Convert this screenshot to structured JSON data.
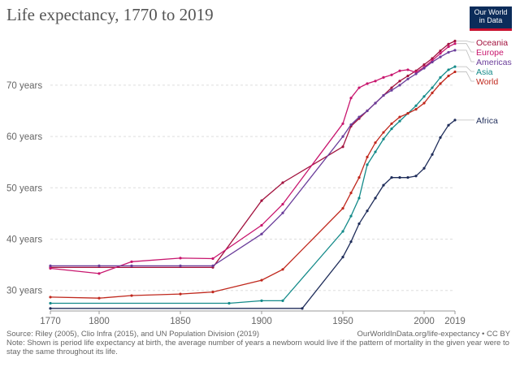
{
  "title": "Life expectancy, 1770 to 2019",
  "logo": {
    "line1": "Our World",
    "line2": "in Data"
  },
  "source": "Source: Riley (2005), Clio Infra (2015), and UN Population Division (2019)",
  "url_credit": "OurWorldInData.org/life-expectancy • CC BY",
  "note": "Note: Shown is period life expectancy at birth, the average number of years a newborn would live if the pattern of mortality in the given year were to stay the same throughout its life.",
  "colors": {
    "Oceania": "#a2123e",
    "Europe": "#c8166e",
    "Americas": "#6a3d9a",
    "Asia": "#138a89",
    "World": "#c0281d",
    "Africa": "#1f2d5a"
  },
  "chart_data": {
    "type": "line",
    "title": "Life expectancy, 1770 to 2019",
    "xlabel": "",
    "ylabel": "",
    "xlim": [
      1770,
      2019
    ],
    "ylim": [
      26,
      79
    ],
    "x_ticks": [
      1770,
      1800,
      1850,
      1900,
      1950,
      2000,
      2019
    ],
    "y_ticks": [
      30,
      40,
      50,
      60,
      70
    ],
    "y_tick_labels": [
      "30 years",
      "40 years",
      "50 years",
      "60 years",
      "70 years"
    ],
    "grid": "horizontal dashed",
    "legend": "right, end-of-line labels",
    "series": [
      {
        "name": "Oceania",
        "x": [
          1770,
          1870,
          1900,
          1913,
          1950,
          1955,
          1960,
          1965,
          1970,
          1975,
          1980,
          1985,
          1990,
          1995,
          2000,
          2005,
          2010,
          2015,
          2019
        ],
        "y": [
          34.5,
          34.5,
          47.5,
          51,
          58,
          62,
          63.5,
          65,
          66.5,
          68,
          69.5,
          70.8,
          71.8,
          72.8,
          74,
          75.2,
          76.7,
          78,
          78.6
        ]
      },
      {
        "name": "Europe",
        "x": [
          1770,
          1800,
          1820,
          1850,
          1870,
          1900,
          1913,
          1950,
          1955,
          1960,
          1965,
          1970,
          1975,
          1980,
          1985,
          1990,
          1995,
          2000,
          2005,
          2010,
          2015,
          2019
        ],
        "y": [
          34.3,
          33.3,
          35.6,
          36.3,
          36.2,
          42.7,
          46.8,
          62.5,
          67.5,
          69.5,
          70.3,
          70.8,
          71.5,
          72,
          72.8,
          73,
          72.5,
          73.5,
          74.8,
          76.2,
          77.5,
          78.1
        ]
      },
      {
        "name": "Americas",
        "x": [
          1770,
          1800,
          1820,
          1850,
          1870,
          1900,
          1913,
          1950,
          1955,
          1960,
          1965,
          1970,
          1975,
          1980,
          1985,
          1990,
          1995,
          2000,
          2005,
          2010,
          2015,
          2019
        ],
        "y": [
          34.8,
          34.8,
          34.8,
          34.8,
          34.8,
          41,
          45.1,
          60,
          62.3,
          63.8,
          65,
          66.5,
          68,
          69,
          70,
          71.2,
          72.2,
          73.3,
          74.5,
          75.5,
          76.4,
          76.8
        ]
      },
      {
        "name": "Asia",
        "x": [
          1770,
          1880,
          1900,
          1913,
          1950,
          1955,
          1960,
          1965,
          1970,
          1975,
          1980,
          1985,
          1990,
          1995,
          2000,
          2005,
          2010,
          2015,
          2019
        ],
        "y": [
          27.5,
          27.5,
          28,
          28,
          41.5,
          44.5,
          48,
          54.5,
          57,
          59.5,
          61.5,
          63,
          64.5,
          66,
          67.8,
          69.5,
          71.5,
          73,
          73.6
        ]
      },
      {
        "name": "World",
        "x": [
          1770,
          1800,
          1820,
          1850,
          1870,
          1900,
          1913,
          1950,
          1955,
          1960,
          1965,
          1970,
          1975,
          1980,
          1985,
          1990,
          1995,
          2000,
          2005,
          2010,
          2015,
          2019
        ],
        "y": [
          28.7,
          28.5,
          29,
          29.3,
          29.7,
          32,
          34.1,
          46,
          49,
          52,
          56,
          58.8,
          60.8,
          62.5,
          63.8,
          64.5,
          65.3,
          66.5,
          68.5,
          70.3,
          71.8,
          72.6
        ]
      },
      {
        "name": "Africa",
        "x": [
          1770,
          1925,
          1950,
          1955,
          1960,
          1965,
          1970,
          1975,
          1980,
          1985,
          1990,
          1995,
          2000,
          2005,
          2010,
          2015,
          2019
        ],
        "y": [
          26.5,
          26.5,
          36.5,
          39.5,
          43,
          45.5,
          48,
          50.5,
          52,
          52,
          52,
          52.3,
          53.8,
          56.5,
          59.8,
          62.2,
          63.2
        ]
      }
    ]
  }
}
